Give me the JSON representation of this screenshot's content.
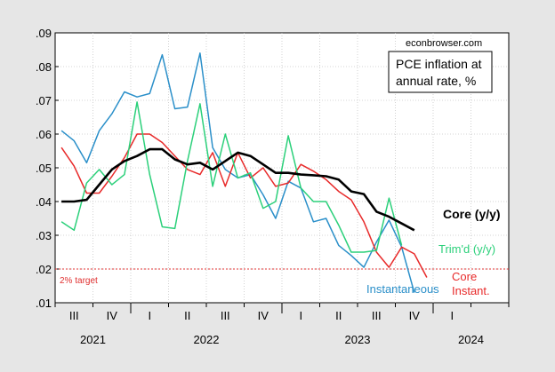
{
  "chart_data": {
    "type": "line",
    "title": "PCE inflation at annual rate, %",
    "title_lines": [
      "PCE inflation at",
      "annual rate, %"
    ],
    "source": "econbrowser.com",
    "ylim": [
      0.01,
      0.09
    ],
    "yticks": [
      0.01,
      0.02,
      0.03,
      0.04,
      0.05,
      0.06,
      0.07,
      0.08,
      0.09
    ],
    "ytick_labels": [
      ".01",
      ".02",
      ".03",
      ".04",
      ".05",
      ".06",
      ".07",
      ".08",
      ".09"
    ],
    "x_start": "2021-07",
    "x_end": "2024-06",
    "quarter_labels": [
      "III",
      "IV",
      "I",
      "II",
      "III",
      "IV",
      "I",
      "II",
      "III",
      "IV",
      "I"
    ],
    "year_labels": [
      "2021",
      "2022",
      "2023",
      "2024"
    ],
    "target": {
      "value": 0.02,
      "label": "2% target",
      "color": "#e03030"
    },
    "series": [
      {
        "name": "Instantaneous",
        "color": "#2a8fc9",
        "width": 1.5,
        "label": "Instantaneous",
        "start": "2021-07",
        "values": [
          0.061,
          0.058,
          0.0515,
          0.061,
          0.066,
          0.0725,
          0.071,
          0.072,
          0.0835,
          0.0675,
          0.068,
          0.084,
          0.056,
          0.0495,
          0.047,
          0.048,
          0.042,
          0.035,
          0.046,
          0.044,
          0.034,
          0.035,
          0.027,
          0.024,
          0.0205,
          0.028,
          0.0345,
          0.0265,
          0.013
        ]
      },
      {
        "name": "Core",
        "color": "#e82a2a",
        "width": 1.5,
        "label": "Core\nInstant.",
        "start": "2021-07",
        "values": [
          0.056,
          0.0505,
          0.0425,
          0.0425,
          0.0475,
          0.053,
          0.06,
          0.06,
          0.0575,
          0.0535,
          0.0495,
          0.048,
          0.0545,
          0.0445,
          0.0545,
          0.047,
          0.05,
          0.0445,
          0.0455,
          0.051,
          0.049,
          0.0465,
          0.043,
          0.0405,
          0.034,
          0.025,
          0.0205,
          0.0265,
          0.0245,
          0.0175
        ]
      },
      {
        "name": "Trim'd (y/y)",
        "color": "#2bd07a",
        "width": 1.5,
        "label": "Trim'd (y/y)",
        "start": "2021-07",
        "values": [
          0.034,
          0.0315,
          0.0455,
          0.0495,
          0.045,
          0.048,
          0.0695,
          0.048,
          0.0325,
          0.032,
          0.052,
          0.069,
          0.0445,
          0.06,
          0.047,
          0.0485,
          0.038,
          0.04,
          0.0595,
          0.044,
          0.04,
          0.04,
          0.033,
          0.025,
          0.025,
          0.0255,
          0.041,
          0.027
        ]
      },
      {
        "name": "Core (y/y)",
        "color": "#000000",
        "width": 2.6,
        "label": "Core (y/y)",
        "start": "2021-07",
        "values": [
          0.04,
          0.04,
          0.0405,
          0.045,
          0.0495,
          0.052,
          0.0535,
          0.0555,
          0.0555,
          0.0525,
          0.051,
          0.0515,
          0.0495,
          0.052,
          0.0545,
          0.0535,
          0.051,
          0.0485,
          0.0485,
          0.048,
          0.0478,
          0.0475,
          0.0465,
          0.043,
          0.0422,
          0.037,
          0.0355,
          0.0335,
          0.0315
        ]
      }
    ]
  }
}
